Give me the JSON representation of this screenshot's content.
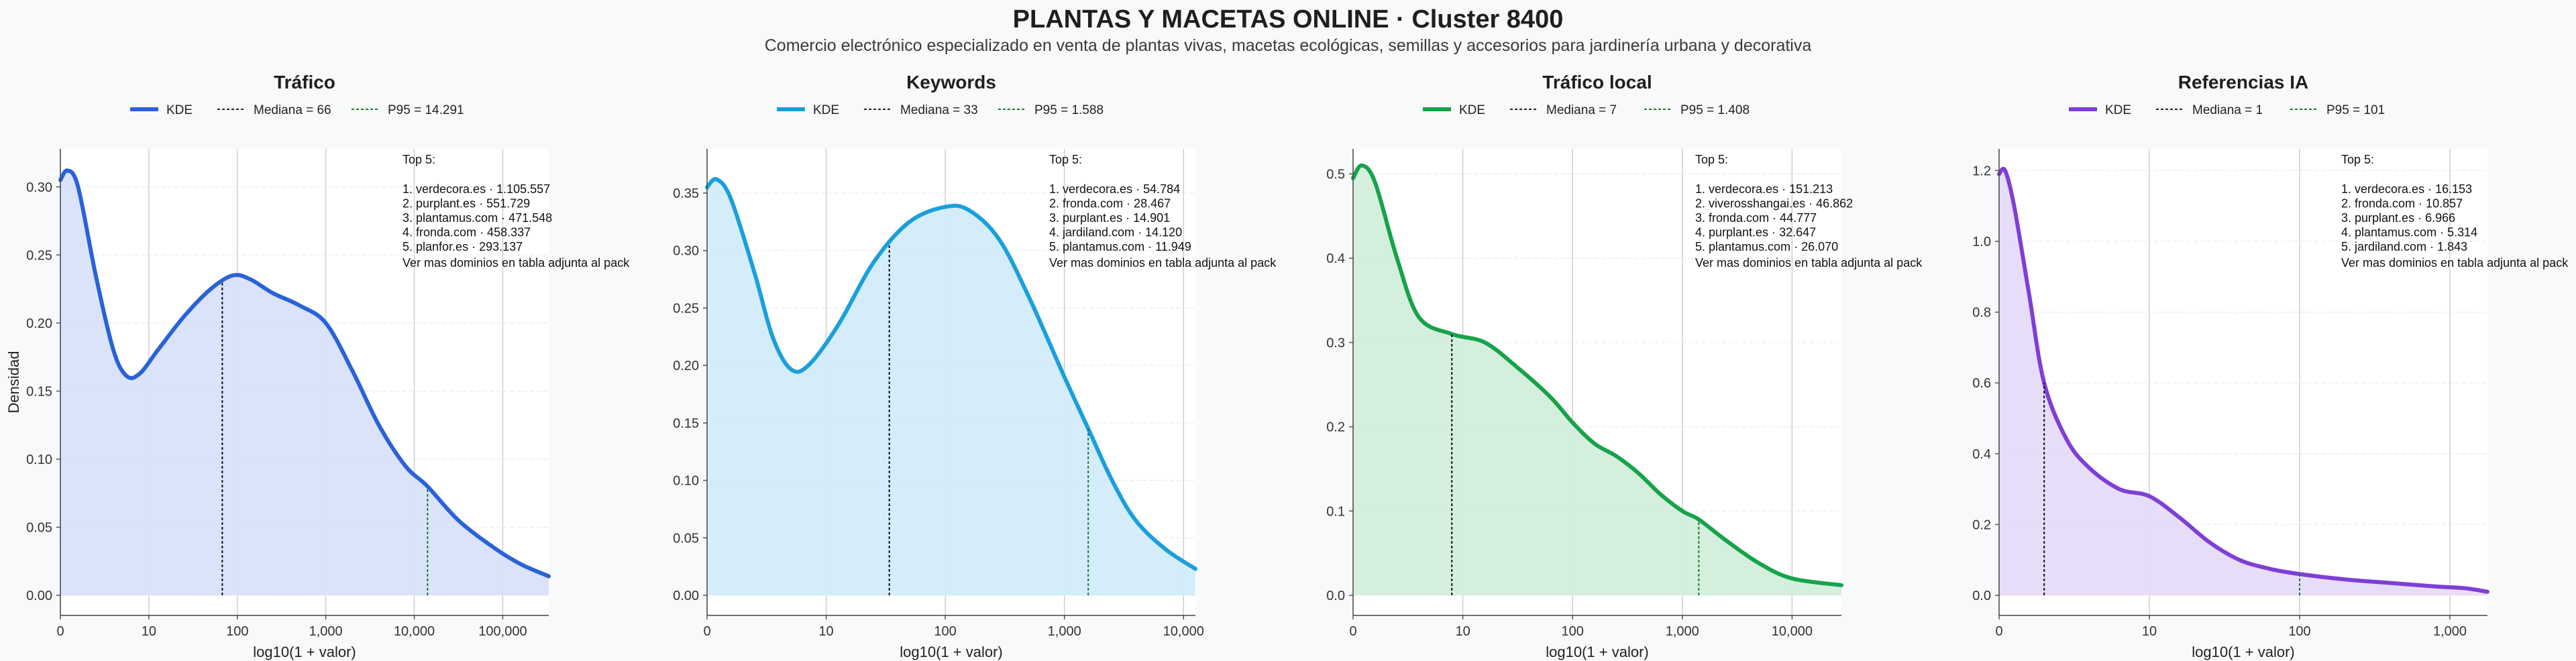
{
  "title": "PLANTAS Y MACETAS ONLINE · Cluster 8400",
  "subtitle": "Comercio electrónico especializado en venta de plantas vivas, macetas ecológicas, semillas y accesorios para jardinería urbana y decorativa",
  "chart_data": [
    {
      "type": "area",
      "title": "Tráfico",
      "xlabel": "log10(1 + valor)",
      "ylabel": "Densidad",
      "color": "#2962d9",
      "fill": "#d8e2fa",
      "x_max_log": 5.52,
      "ylim": [
        0,
        0.325
      ],
      "yticks": [
        0.0,
        0.05,
        0.1,
        0.15,
        0.2,
        0.25,
        0.3
      ],
      "ytick_labels": [
        "0.00",
        "0.05",
        "0.10",
        "0.15",
        "0.20",
        "0.25",
        "0.30"
      ],
      "xticks_log": [
        0,
        1,
        2,
        3,
        4,
        5
      ],
      "xtick_labels": [
        "0",
        "10",
        "100",
        "1,000",
        "10,000",
        "100,000"
      ],
      "legend": [
        "KDE",
        "Mediana = 66",
        "P95 = 14.291"
      ],
      "median_log": 1.83,
      "p95_log": 4.15,
      "kde": [
        [
          0,
          0.305
        ],
        [
          0.08,
          0.312
        ],
        [
          0.2,
          0.3
        ],
        [
          0.4,
          0.235
        ],
        [
          0.6,
          0.18
        ],
        [
          0.75,
          0.161
        ],
        [
          0.9,
          0.163
        ],
        [
          1.1,
          0.18
        ],
        [
          1.4,
          0.205
        ],
        [
          1.7,
          0.225
        ],
        [
          1.95,
          0.235
        ],
        [
          2.15,
          0.232
        ],
        [
          2.4,
          0.222
        ],
        [
          2.7,
          0.213
        ],
        [
          3.0,
          0.2
        ],
        [
          3.3,
          0.165
        ],
        [
          3.6,
          0.125
        ],
        [
          3.9,
          0.095
        ],
        [
          4.15,
          0.08
        ],
        [
          4.5,
          0.055
        ],
        [
          4.9,
          0.035
        ],
        [
          5.2,
          0.023
        ],
        [
          5.52,
          0.014
        ]
      ],
      "top5_title": "Top 5:",
      "top5": [
        "1. verdecora.es · 1.105.557",
        "2. purplant.es · 551.729",
        "3. plantamus.com · 471.548",
        "4. fronda.com · 458.337",
        "5. planfor.es · 293.137"
      ],
      "note": "Ver mas dominios en tabla adjunta al pack"
    },
    {
      "type": "area",
      "title": "Keywords",
      "xlabel": "log10(1 + valor)",
      "ylabel": "",
      "color": "#1b9fdc",
      "fill": "#d3ecfa",
      "x_max_log": 4.1,
      "ylim": [
        0,
        0.385
      ],
      "yticks": [
        0.0,
        0.05,
        0.1,
        0.15,
        0.2,
        0.25,
        0.3,
        0.35
      ],
      "ytick_labels": [
        "0.00",
        "0.05",
        "0.10",
        "0.15",
        "0.20",
        "0.25",
        "0.30",
        "0.35"
      ],
      "xticks_log": [
        0,
        1,
        2,
        3,
        4
      ],
      "xtick_labels": [
        "0",
        "10",
        "100",
        "1,000",
        "10,000"
      ],
      "legend": [
        "KDE",
        "Mediana = 33",
        "P95 = 1.588"
      ],
      "median_log": 1.53,
      "p95_log": 3.2,
      "kde": [
        [
          0,
          0.355
        ],
        [
          0.08,
          0.362
        ],
        [
          0.2,
          0.345
        ],
        [
          0.4,
          0.28
        ],
        [
          0.55,
          0.225
        ],
        [
          0.7,
          0.197
        ],
        [
          0.85,
          0.2
        ],
        [
          1.1,
          0.235
        ],
        [
          1.4,
          0.29
        ],
        [
          1.7,
          0.325
        ],
        [
          2.0,
          0.338
        ],
        [
          2.2,
          0.335
        ],
        [
          2.45,
          0.31
        ],
        [
          2.7,
          0.26
        ],
        [
          3.0,
          0.19
        ],
        [
          3.2,
          0.145
        ],
        [
          3.4,
          0.1
        ],
        [
          3.6,
          0.065
        ],
        [
          3.85,
          0.04
        ],
        [
          4.1,
          0.023
        ]
      ],
      "top5_title": "Top 5:",
      "top5": [
        "1. verdecora.es · 54.784",
        "2. fronda.com · 28.467",
        "3. purplant.es · 14.901",
        "4. jardiland.com · 14.120",
        "5. plantamus.com · 11.949"
      ],
      "note": "Ver mas dominios en tabla adjunta al pack"
    },
    {
      "type": "area",
      "title": "Tráfico local",
      "xlabel": "log10(1 + valor)",
      "ylabel": "",
      "color": "#16a34a",
      "fill": "#d3eedb",
      "x_max_log": 4.45,
      "ylim": [
        0,
        0.525
      ],
      "yticks": [
        0.0,
        0.1,
        0.2,
        0.3,
        0.4,
        0.5
      ],
      "ytick_labels": [
        "0.0",
        "0.1",
        "0.2",
        "0.3",
        "0.4",
        "0.5"
      ],
      "xticks_log": [
        0,
        1,
        2,
        3,
        4
      ],
      "xtick_labels": [
        "0",
        "10",
        "100",
        "1,000",
        "10,000"
      ],
      "legend": [
        "KDE",
        "Mediana = 7",
        "P95 = 1.408"
      ],
      "median_log": 0.9,
      "p95_log": 3.15,
      "kde": [
        [
          0,
          0.495
        ],
        [
          0.08,
          0.51
        ],
        [
          0.2,
          0.49
        ],
        [
          0.4,
          0.4
        ],
        [
          0.6,
          0.33
        ],
        [
          0.9,
          0.31
        ],
        [
          1.2,
          0.3
        ],
        [
          1.5,
          0.27
        ],
        [
          1.8,
          0.235
        ],
        [
          2.0,
          0.205
        ],
        [
          2.2,
          0.18
        ],
        [
          2.4,
          0.165
        ],
        [
          2.6,
          0.145
        ],
        [
          2.8,
          0.12
        ],
        [
          3.0,
          0.1
        ],
        [
          3.15,
          0.09
        ],
        [
          3.4,
          0.065
        ],
        [
          3.7,
          0.038
        ],
        [
          4.0,
          0.02
        ],
        [
          4.45,
          0.012
        ]
      ],
      "top5_title": "Top 5:",
      "top5": [
        "1. verdecora.es · 151.213",
        "2. viverosshangai.es · 46.862",
        "3. fronda.com · 44.777",
        "4. purplant.es · 32.647",
        "5. plantamus.com · 26.070"
      ],
      "note": "Ver mas dominios en tabla adjunta al pack"
    },
    {
      "type": "area",
      "title": "Referencias IA",
      "xlabel": "log10(1 + valor)",
      "ylabel": "",
      "color": "#7e3fd6",
      "fill": "#e6dbf8",
      "x_max_log": 3.25,
      "ylim": [
        0,
        1.25
      ],
      "yticks": [
        0.0,
        0.2,
        0.4,
        0.6,
        0.8,
        1.0,
        1.2
      ],
      "ytick_labels": [
        "0.0",
        "0.2",
        "0.4",
        "0.6",
        "0.8",
        "1.0",
        "1.2"
      ],
      "xticks_log": [
        0,
        1,
        2,
        3
      ],
      "xtick_labels": [
        "0",
        "10",
        "100",
        "1,000"
      ],
      "legend": [
        "KDE",
        "Mediana = 1",
        "P95 = 101"
      ],
      "median_log": 0.3,
      "p95_log": 2.0,
      "kde": [
        [
          0,
          1.19
        ],
        [
          0.04,
          1.2
        ],
        [
          0.1,
          1.1
        ],
        [
          0.2,
          0.85
        ],
        [
          0.3,
          0.6
        ],
        [
          0.45,
          0.44
        ],
        [
          0.6,
          0.36
        ],
        [
          0.8,
          0.3
        ],
        [
          1.0,
          0.28
        ],
        [
          1.2,
          0.22
        ],
        [
          1.4,
          0.15
        ],
        [
          1.6,
          0.1
        ],
        [
          1.8,
          0.075
        ],
        [
          2.0,
          0.06
        ],
        [
          2.3,
          0.045
        ],
        [
          2.6,
          0.035
        ],
        [
          2.9,
          0.025
        ],
        [
          3.1,
          0.02
        ],
        [
          3.25,
          0.01
        ]
      ],
      "top5_title": "Top 5:",
      "top5": [
        "1. verdecora.es · 16.153",
        "2. fronda.com · 10.857",
        "3. purplant.es · 6.966",
        "4. plantamus.com · 5.314",
        "5. jardiland.com · 1.843"
      ],
      "note": "Ver mas dominios en tabla adjunta al pack"
    }
  ]
}
